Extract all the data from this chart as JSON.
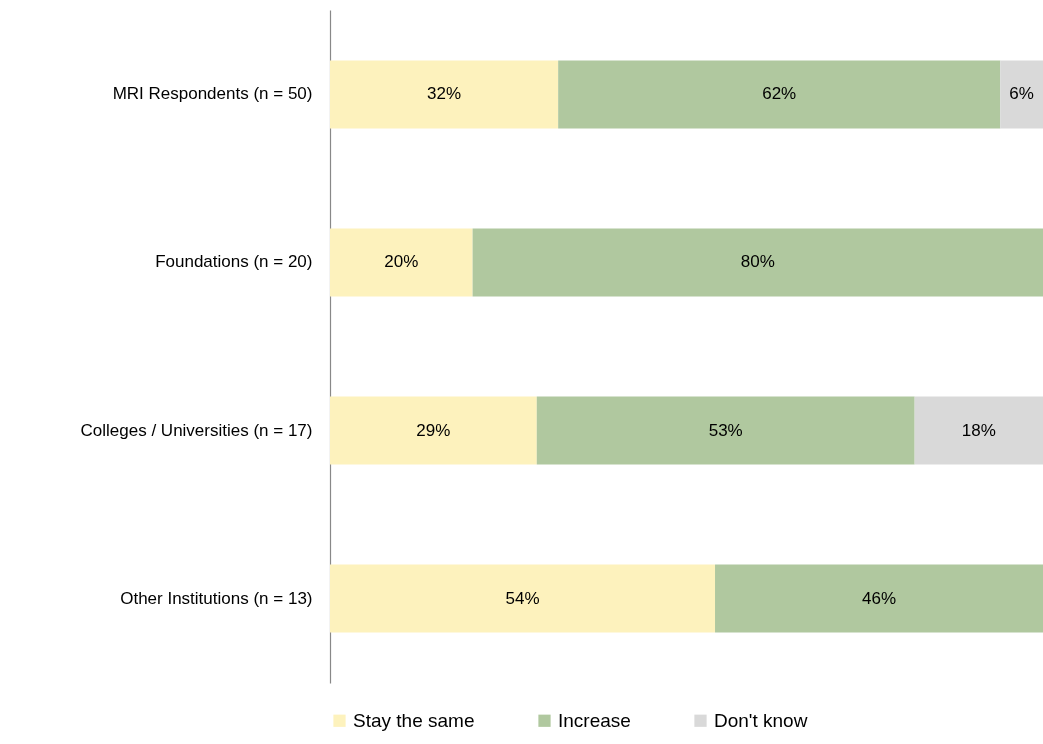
{
  "chart_data": {
    "type": "bar",
    "orientation": "horizontal",
    "stacked": true,
    "data_labels": true,
    "legend": "bottom",
    "grid": false,
    "tick_labels": "y",
    "categories": [
      "MRI Respondents (n = 50)",
      "Foundations (n = 20)",
      "Colleges / Universities (n = 17)",
      "Other Institutions (n = 13)"
    ],
    "series": [
      {
        "name": "Stay the same",
        "color": "#fdf2bd",
        "values": [
          32,
          20,
          29,
          54
        ],
        "value_labels": [
          "32%",
          "20%",
          "29%",
          "54%"
        ]
      },
      {
        "name": "Increase",
        "color": "#b0c89f",
        "values": [
          62,
          80,
          53,
          46
        ],
        "value_labels": [
          "62%",
          "80%",
          "53%",
          "46%"
        ]
      },
      {
        "name": "Don't know",
        "color": "#d9d9d9",
        "values": [
          6,
          null,
          18,
          null
        ],
        "value_labels": [
          "6%",
          null,
          "18%",
          null
        ]
      }
    ]
  }
}
